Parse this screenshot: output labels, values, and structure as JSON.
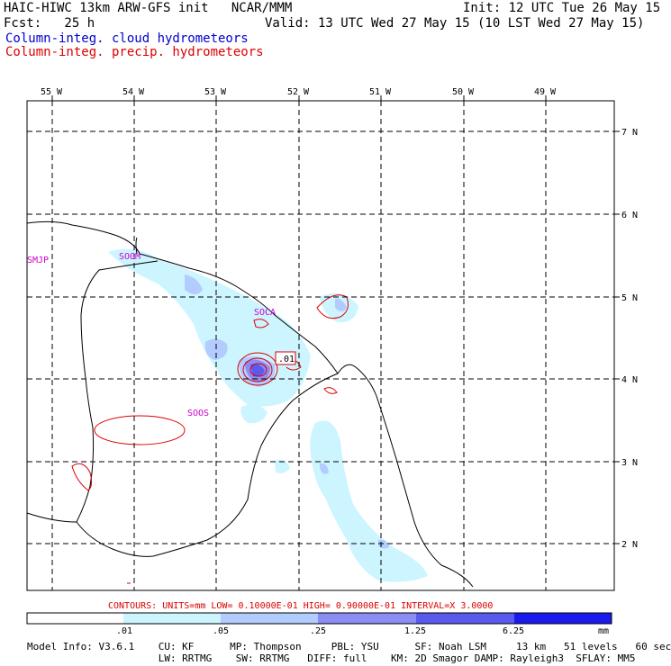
{
  "header": {
    "title": "HAIC-HIWC 13km ARW-GFS init   NCAR/MMM",
    "init": "Init: 12 UTC Tue 26 May 15",
    "fcst": "Fcst:   25 h",
    "valid": "Valid: 13 UTC Wed 27 May 15 (10 LST Wed 27 May 15)"
  },
  "legend": {
    "cloud": "Column-integ. cloud hydrometeors",
    "precip": "Column-integ. precip. hydrometeors",
    "cloud_color": "#0000cc",
    "precip_color": "#dd0000"
  },
  "map": {
    "lon_labels": [
      "55 W",
      "54 W",
      "53 W",
      "52 W",
      "51 W",
      "50 W",
      "49 W"
    ],
    "lat_labels": [
      "7 N",
      "6 N",
      "5 N",
      "4 N",
      "3 N",
      "2 N"
    ],
    "stations": [
      "SMJP",
      "SOGM",
      "SOCA",
      "SOOS"
    ],
    "contour_label": ".01"
  },
  "contours_line": "CONTOURS:  UNITS=mm  LOW= 0.10000E-01  HIGH= 0.90000E-01  INTERVAL=X  3.0000",
  "colorbar": {
    "ticks": [
      ".01",
      ".05",
      ".25",
      "1.25",
      "6.25"
    ],
    "unit": "mm",
    "colors": [
      "#ffffff",
      "#ccf5ff",
      "#b3ccff",
      "#8c8cf5",
      "#5a5aee",
      "#1a1aee"
    ]
  },
  "footer": {
    "line1": "Model Info: V3.6.1    CU: KF      MP: Thompson     PBL: YSU      SF: Noah LSM     13 km   51 levels   60 sec",
    "line2": "                      LW: RRTMG    SW: RRTMG   DIFF: full    KM: 2D Smagor DAMP: Rayleigh3  SFLAY: MM5"
  }
}
